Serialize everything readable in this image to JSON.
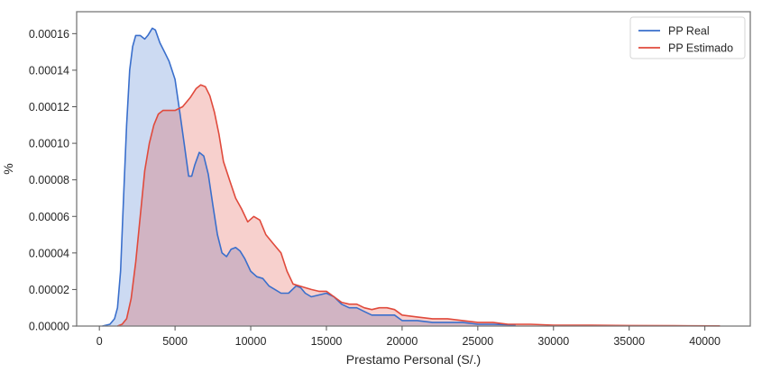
{
  "chart_data": {
    "type": "area",
    "xlabel": "Prestamo Personal (S/.)",
    "ylabel": "%",
    "xlim": [
      -1500,
      43000
    ],
    "ylim": [
      0,
      0.000172
    ],
    "xticks": [
      0,
      5000,
      10000,
      15000,
      20000,
      25000,
      30000,
      35000,
      40000
    ],
    "xtick_labels": [
      "0",
      "5000",
      "10000",
      "15000",
      "20000",
      "25000",
      "30000",
      "35000",
      "40000"
    ],
    "yticks": [
      0,
      2e-05,
      4e-05,
      6e-05,
      8e-05,
      0.0001,
      0.00012,
      0.00014,
      0.00016
    ],
    "ytick_labels": [
      "0.00000",
      "0.00002",
      "0.00004",
      "0.00006",
      "0.00008",
      "0.00010",
      "0.00012",
      "0.00014",
      "0.00016"
    ],
    "grid": false,
    "legend_position": "top-right",
    "series": [
      {
        "name": "PP Real",
        "color": "#3a6fcc",
        "fill": "#c9d8ef",
        "points": [
          [
            200,
            0
          ],
          [
            700,
            1e-06
          ],
          [
            1000,
            4e-06
          ],
          [
            1200,
            1e-05
          ],
          [
            1400,
            3e-05
          ],
          [
            1600,
            7e-05
          ],
          [
            1800,
            0.00011
          ],
          [
            2000,
            0.00014
          ],
          [
            2200,
            0.000153
          ],
          [
            2400,
            0.000159
          ],
          [
            2700,
            0.000159
          ],
          [
            3000,
            0.000157
          ],
          [
            3200,
            0.000159
          ],
          [
            3500,
            0.000163
          ],
          [
            3700,
            0.000162
          ],
          [
            4000,
            0.000155
          ],
          [
            4300,
            0.00015
          ],
          [
            4600,
            0.000145
          ],
          [
            5000,
            0.000135
          ],
          [
            5300,
            0.000118
          ],
          [
            5600,
            0.0001
          ],
          [
            5900,
            8.2e-05
          ],
          [
            6100,
            8.2e-05
          ],
          [
            6300,
            8.8e-05
          ],
          [
            6600,
            9.5e-05
          ],
          [
            6900,
            9.3e-05
          ],
          [
            7200,
            8.3e-05
          ],
          [
            7500,
            6.6e-05
          ],
          [
            7800,
            5e-05
          ],
          [
            8100,
            4e-05
          ],
          [
            8400,
            3.8e-05
          ],
          [
            8700,
            4.2e-05
          ],
          [
            9000,
            4.3e-05
          ],
          [
            9300,
            4.1e-05
          ],
          [
            9600,
            3.7e-05
          ],
          [
            10000,
            3e-05
          ],
          [
            10400,
            2.7e-05
          ],
          [
            10800,
            2.6e-05
          ],
          [
            11200,
            2.2e-05
          ],
          [
            11600,
            2e-05
          ],
          [
            12000,
            1.8e-05
          ],
          [
            12500,
            1.8e-05
          ],
          [
            13000,
            2.2e-05
          ],
          [
            13300,
            2.1e-05
          ],
          [
            13600,
            1.8e-05
          ],
          [
            14000,
            1.6e-05
          ],
          [
            14500,
            1.7e-05
          ],
          [
            15000,
            1.8e-05
          ],
          [
            15500,
            1.6e-05
          ],
          [
            16000,
            1.2e-05
          ],
          [
            16500,
            1e-05
          ],
          [
            17000,
            1e-05
          ],
          [
            17500,
            8e-06
          ],
          [
            18000,
            6e-06
          ],
          [
            18500,
            6e-06
          ],
          [
            19000,
            6e-06
          ],
          [
            19500,
            6e-06
          ],
          [
            20000,
            3e-06
          ],
          [
            21000,
            3e-06
          ],
          [
            22000,
            2e-06
          ],
          [
            23000,
            2e-06
          ],
          [
            24000,
            2e-06
          ],
          [
            25000,
            1e-06
          ],
          [
            26000,
            1e-06
          ],
          [
            27500,
            5e-07
          ]
        ]
      },
      {
        "name": "PP Estimado",
        "color": "#e04a3c",
        "fill": "#f4c4bf",
        "points": [
          [
            1200,
            0
          ],
          [
            1500,
            1e-06
          ],
          [
            1800,
            4e-06
          ],
          [
            2100,
            1.5e-05
          ],
          [
            2400,
            3.5e-05
          ],
          [
            2700,
            6e-05
          ],
          [
            3000,
            8.5e-05
          ],
          [
            3300,
            0.0001
          ],
          [
            3600,
            0.00011
          ],
          [
            3900,
            0.000116
          ],
          [
            4200,
            0.000118
          ],
          [
            4500,
            0.000118
          ],
          [
            5000,
            0.000118
          ],
          [
            5500,
            0.00012
          ],
          [
            6000,
            0.000125
          ],
          [
            6400,
            0.00013
          ],
          [
            6700,
            0.000132
          ],
          [
            7000,
            0.000131
          ],
          [
            7300,
            0.000126
          ],
          [
            7600,
            0.000117
          ],
          [
            7900,
            0.000105
          ],
          [
            8200,
            9e-05
          ],
          [
            8600,
            8e-05
          ],
          [
            9000,
            7e-05
          ],
          [
            9400,
            6.4e-05
          ],
          [
            9800,
            5.7e-05
          ],
          [
            10200,
            6e-05
          ],
          [
            10600,
            5.8e-05
          ],
          [
            11000,
            5e-05
          ],
          [
            11500,
            4.5e-05
          ],
          [
            12000,
            4e-05
          ],
          [
            12400,
            3e-05
          ],
          [
            12800,
            2.3e-05
          ],
          [
            13200,
            2.2e-05
          ],
          [
            13600,
            2.1e-05
          ],
          [
            14000,
            2e-05
          ],
          [
            14500,
            1.9e-05
          ],
          [
            15000,
            1.9e-05
          ],
          [
            15500,
            1.6e-05
          ],
          [
            16000,
            1.3e-05
          ],
          [
            16500,
            1.2e-05
          ],
          [
            17000,
            1.2e-05
          ],
          [
            17500,
            1e-05
          ],
          [
            18000,
            9e-06
          ],
          [
            18500,
            1e-05
          ],
          [
            19000,
            1e-05
          ],
          [
            19500,
            9e-06
          ],
          [
            20000,
            6e-06
          ],
          [
            21000,
            5e-06
          ],
          [
            22000,
            4e-06
          ],
          [
            23000,
            4e-06
          ],
          [
            24000,
            3e-06
          ],
          [
            25000,
            2e-06
          ],
          [
            26000,
            2e-06
          ],
          [
            27000,
            1e-06
          ],
          [
            28500,
            1e-06
          ],
          [
            30000,
            5e-07
          ],
          [
            32500,
            5e-07
          ],
          [
            35000,
            3e-07
          ],
          [
            38000,
            2e-07
          ],
          [
            41000,
            1e-07
          ]
        ]
      }
    ]
  }
}
